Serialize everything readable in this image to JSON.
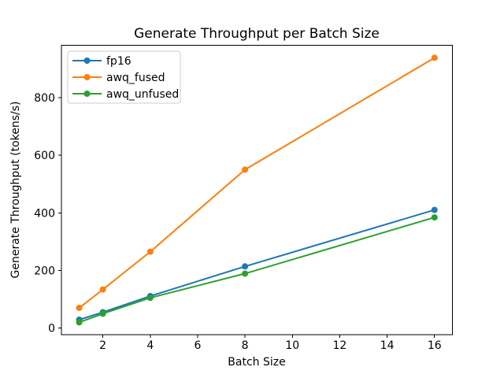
{
  "chart_data": {
    "type": "line",
    "title": "Generate Throughput per Batch Size",
    "xlabel": "Batch Size",
    "ylabel": "Generate Throughput (tokens/s)",
    "x": [
      1,
      2,
      4,
      8,
      16
    ],
    "series": [
      {
        "name": "fp16",
        "color": "#1f77b4",
        "values": [
          29,
          55,
          111,
          214,
          410
        ]
      },
      {
        "name": "awq_fused",
        "color": "#ff7f0e",
        "values": [
          70,
          134,
          265,
          550,
          938
        ]
      },
      {
        "name": "awq_unfused",
        "color": "#2ca02c",
        "values": [
          20,
          50,
          105,
          189,
          384
        ]
      }
    ],
    "xticks": [
      "2",
      "4",
      "6",
      "8",
      "10",
      "12",
      "14",
      "16"
    ],
    "xtick_values": [
      2,
      4,
      6,
      8,
      10,
      12,
      14,
      16
    ],
    "yticks": [
      "0",
      "200",
      "400",
      "600",
      "800"
    ],
    "ytick_values": [
      0,
      200,
      400,
      600,
      800
    ],
    "xlim": [
      0.25,
      16.75
    ],
    "ylim": [
      -23,
      981
    ],
    "grid": false,
    "legend_position": "upper left",
    "marker": "o",
    "colors": {
      "background": "#ffffff",
      "spine": "#000000",
      "text": "#000000",
      "legend_border": "#cccccc",
      "legend_fill": "#ffffff"
    }
  }
}
